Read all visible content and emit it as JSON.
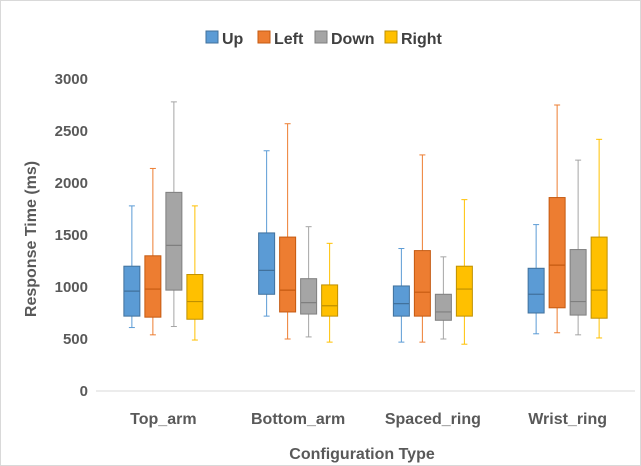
{
  "chart_data": {
    "type": "boxplot",
    "title": "",
    "xlabel": "Configuration Type",
    "ylabel": "Response Time (ms)",
    "ylim": [
      0,
      3000
    ],
    "yticks": [
      0,
      500,
      1000,
      1500,
      2000,
      2500,
      3000
    ],
    "grid": false,
    "legend_position": "top",
    "categories": [
      "Top_arm",
      "Bottom_arm",
      "Spaced_ring",
      "Wrist_ring"
    ],
    "series": [
      {
        "name": "Up",
        "color": "#5B9BD5",
        "stroke": "#41719C",
        "boxes": [
          {
            "min": 610,
            "q1": 720,
            "median": 960,
            "q3": 1200,
            "max": 1780
          },
          {
            "min": 720,
            "q1": 930,
            "median": 1160,
            "q3": 1520,
            "max": 2310
          },
          {
            "min": 470,
            "q1": 720,
            "median": 840,
            "q3": 1010,
            "max": 1370
          },
          {
            "min": 550,
            "q1": 750,
            "median": 930,
            "q3": 1180,
            "max": 1600
          }
        ]
      },
      {
        "name": "Left",
        "color": "#ED7D31",
        "stroke": "#C55A11",
        "boxes": [
          {
            "min": 540,
            "q1": 710,
            "median": 980,
            "q3": 1300,
            "max": 2140
          },
          {
            "min": 500,
            "q1": 760,
            "median": 970,
            "q3": 1480,
            "max": 2570
          },
          {
            "min": 470,
            "q1": 720,
            "median": 950,
            "q3": 1350,
            "max": 2270
          },
          {
            "min": 560,
            "q1": 800,
            "median": 1210,
            "q3": 1860,
            "max": 2750
          }
        ]
      },
      {
        "name": "Down",
        "color": "#A5A5A5",
        "stroke": "#7F7F7F",
        "boxes": [
          {
            "min": 620,
            "q1": 970,
            "median": 1400,
            "q3": 1910,
            "max": 2780
          },
          {
            "min": 520,
            "q1": 740,
            "median": 850,
            "q3": 1080,
            "max": 1580
          },
          {
            "min": 500,
            "q1": 680,
            "median": 760,
            "q3": 930,
            "max": 1290
          },
          {
            "min": 540,
            "q1": 730,
            "median": 860,
            "q3": 1360,
            "max": 2220
          }
        ]
      },
      {
        "name": "Right",
        "color": "#FFC000",
        "stroke": "#BF9000",
        "boxes": [
          {
            "min": 490,
            "q1": 690,
            "median": 860,
            "q3": 1120,
            "max": 1780
          },
          {
            "min": 470,
            "q1": 720,
            "median": 820,
            "q3": 1020,
            "max": 1420
          },
          {
            "min": 450,
            "q1": 720,
            "median": 980,
            "q3": 1200,
            "max": 1840
          },
          {
            "min": 510,
            "q1": 700,
            "median": 970,
            "q3": 1480,
            "max": 2420
          }
        ]
      }
    ]
  }
}
